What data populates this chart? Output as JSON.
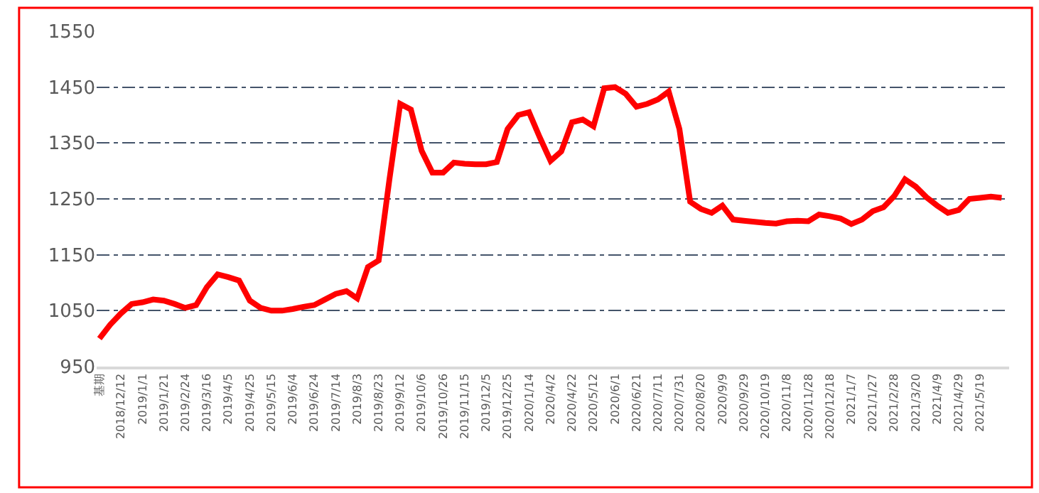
{
  "chart_data": {
    "type": "line",
    "categories": [
      "基期",
      null,
      "2018/12/12",
      null,
      "2019/1/1",
      null,
      "2019/1/21",
      null,
      "2019/2/24",
      null,
      "2019/3/16",
      null,
      "2019/4/5",
      null,
      "2019/4/25",
      null,
      "2019/5/15",
      null,
      "2019/6/4",
      null,
      "2019/6/24",
      null,
      "2019/7/14",
      null,
      "2019/8/3",
      null,
      "2019/8/23",
      null,
      "2019/9/12",
      null,
      "2019/10/6",
      null,
      "2019/10/26",
      null,
      "2019/11/15",
      null,
      "2019/12/5",
      null,
      "2019/12/25",
      null,
      "2020/1/14",
      null,
      "2020/4/2",
      null,
      "2020/4/22",
      null,
      "2020/5/12",
      null,
      "2020/6/1",
      null,
      "2020/6/21",
      null,
      "2020/7/11",
      null,
      "2020/7/31",
      null,
      "2020/8/20",
      null,
      "2020/9/9",
      null,
      "2020/9/29",
      null,
      "2020/10/19",
      null,
      "2020/11/8",
      null,
      "2020/11/28",
      null,
      "2020/12/18",
      null,
      "2021/1/7",
      null,
      "2021/1/27",
      null,
      "2021/2/28",
      null,
      "2021/3/20",
      null,
      "2021/4/9",
      null,
      "2021/4/29",
      null,
      "2021/5/19",
      null,
      null
    ],
    "series": [
      {
        "color": "#ff0000",
        "values": [
          1000,
          1025,
          1045,
          1062,
          1065,
          1070,
          1068,
          1062,
          1055,
          1060,
          1092,
          1115,
          1110,
          1104,
          1068,
          1055,
          1050,
          1050,
          1053,
          1057,
          1060,
          1070,
          1080,
          1085,
          1072,
          1128,
          1140,
          1285,
          1420,
          1410,
          1336,
          1297,
          1297,
          1315,
          1313,
          1312,
          1312,
          1316,
          1375,
          1400,
          1405,
          1360,
          1318,
          1335,
          1387,
          1392,
          1380,
          1448,
          1450,
          1438,
          1415,
          1420,
          1428,
          1442,
          1375,
          1245,
          1232,
          1225,
          1238,
          1213,
          1211,
          1209,
          1207,
          1206,
          1210,
          1211,
          1210,
          1222,
          1219,
          1215,
          1205,
          1213,
          1228,
          1235,
          1255,
          1285,
          1272,
          1253,
          1238,
          1225,
          1230,
          1250,
          1252,
          1254,
          1252
        ]
      }
    ],
    "ylim": [
      950,
      1550
    ],
    "yticks": [
      950,
      1050,
      1150,
      1250,
      1350,
      1450,
      1550
    ],
    "grid": "y",
    "line_style": "solid",
    "marker": "none"
  }
}
